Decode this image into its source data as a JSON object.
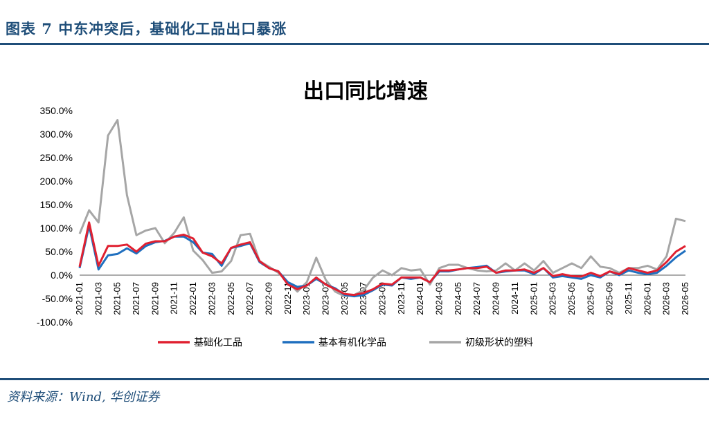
{
  "header": {
    "title": "图表 7 中东冲突后，基础化工品出口暴涨"
  },
  "footer": {
    "source": "资料来源：Wind, 华创证券"
  },
  "colors": {
    "brand": "#1f4e79",
    "red": "#e02030",
    "blue": "#1f6fbf",
    "gray": "#a6a6a6"
  },
  "chart_data": {
    "type": "line",
    "title": "出口同比增速",
    "ylim": [
      -100,
      350
    ],
    "yticks": [
      -100,
      -50,
      0,
      50,
      100,
      150,
      200,
      250,
      300,
      350
    ],
    "ytick_labels": [
      "-100.0%",
      "-50.0%",
      "0.0%",
      "50.0%",
      "100.0%",
      "150.0%",
      "200.0%",
      "250.0%",
      "300.0%",
      "350.0%"
    ],
    "x": [
      "2021-01",
      "2021-02",
      "2021-03",
      "2021-04",
      "2021-05",
      "2021-06",
      "2021-07",
      "2021-08",
      "2021-09",
      "2021-10",
      "2021-11",
      "2021-12",
      "2022-01",
      "2022-02",
      "2022-03",
      "2022-04",
      "2022-05",
      "2022-06",
      "2022-07",
      "2022-08",
      "2022-09",
      "2022-10",
      "2022-11",
      "2022-12",
      "2023-01",
      "2023-02",
      "2023-03",
      "2023-04",
      "2023-05",
      "2023-06",
      "2023-07",
      "2023-08",
      "2023-09",
      "2023-10",
      "2023-11",
      "2023-12",
      "2024-01",
      "2024-02",
      "2024-03",
      "2024-04",
      "2024-05",
      "2024-06",
      "2024-07",
      "2024-08",
      "2024-09",
      "2024-10",
      "2024-11",
      "2024-12",
      "2025-01",
      "2025-02",
      "2025-03",
      "2025-04",
      "2025-05",
      "2025-06",
      "2025-07",
      "2025-08",
      "2025-09",
      "2025-10",
      "2025-11",
      "2025-12",
      "2026-01",
      "2026-02",
      "2026-03",
      "2026-04",
      "2026-05"
    ],
    "xtick_labels": [
      "2021-01",
      "2021-03",
      "2021-05",
      "2021-07",
      "2021-09",
      "2021-11",
      "2022-01",
      "2022-03",
      "2022-05",
      "2022-07",
      "2022-09",
      "2022-11",
      "2023-01",
      "2023-03",
      "2023-05",
      "2023-07",
      "2023-09",
      "2023-11",
      "2024-01",
      "2024-03",
      "2024-05",
      "2024-07",
      "2024-09",
      "2024-11",
      "2025-01",
      "2025-03",
      "2025-05",
      "2025-07",
      "2025-09",
      "2025-11",
      "2026-01",
      "2026-03",
      "2026-05"
    ],
    "legend_position": "bottom",
    "series": [
      {
        "name": "基础化工品",
        "color": "#e02030",
        "values": [
          18,
          112,
          20,
          62,
          62,
          65,
          50,
          67,
          72,
          72,
          82,
          86,
          78,
          48,
          40,
          25,
          58,
          65,
          70,
          30,
          15,
          8,
          -20,
          -30,
          -22,
          -5,
          -20,
          -30,
          -40,
          -42,
          -38,
          -30,
          -18,
          -20,
          -5,
          -5,
          -5,
          -15,
          10,
          10,
          12,
          15,
          15,
          18,
          5,
          10,
          10,
          12,
          5,
          15,
          -2,
          2,
          -2,
          -3,
          5,
          -2,
          8,
          2,
          15,
          10,
          5,
          10,
          28,
          50,
          62
        ]
      },
      {
        "name": "基本有机化学品",
        "color": "#1f6fbf",
        "values": [
          15,
          105,
          12,
          42,
          45,
          57,
          46,
          62,
          70,
          73,
          82,
          82,
          70,
          48,
          45,
          20,
          58,
          62,
          68,
          28,
          15,
          8,
          -15,
          -25,
          -22,
          -8,
          -20,
          -28,
          -42,
          -45,
          -42,
          -32,
          -20,
          -22,
          -5,
          -8,
          -5,
          -15,
          8,
          8,
          12,
          15,
          17,
          20,
          5,
          8,
          10,
          10,
          2,
          15,
          -5,
          -2,
          -5,
          -8,
          0,
          -5,
          8,
          0,
          10,
          5,
          2,
          5,
          20,
          38,
          52
        ]
      },
      {
        "name": "初级形状的塑料",
        "color": "#a6a6a6",
        "values": [
          88,
          138,
          112,
          297,
          330,
          170,
          85,
          95,
          100,
          68,
          90,
          123,
          52,
          32,
          5,
          8,
          30,
          85,
          88,
          30,
          18,
          5,
          -15,
          -35,
          -15,
          37,
          -10,
          -35,
          -45,
          -42,
          -32,
          -5,
          10,
          0,
          15,
          10,
          12,
          -20,
          15,
          22,
          22,
          15,
          10,
          8,
          10,
          25,
          10,
          25,
          10,
          30,
          5,
          15,
          25,
          15,
          40,
          18,
          15,
          5,
          15,
          15,
          20,
          12,
          40,
          120,
          115
        ]
      }
    ]
  }
}
